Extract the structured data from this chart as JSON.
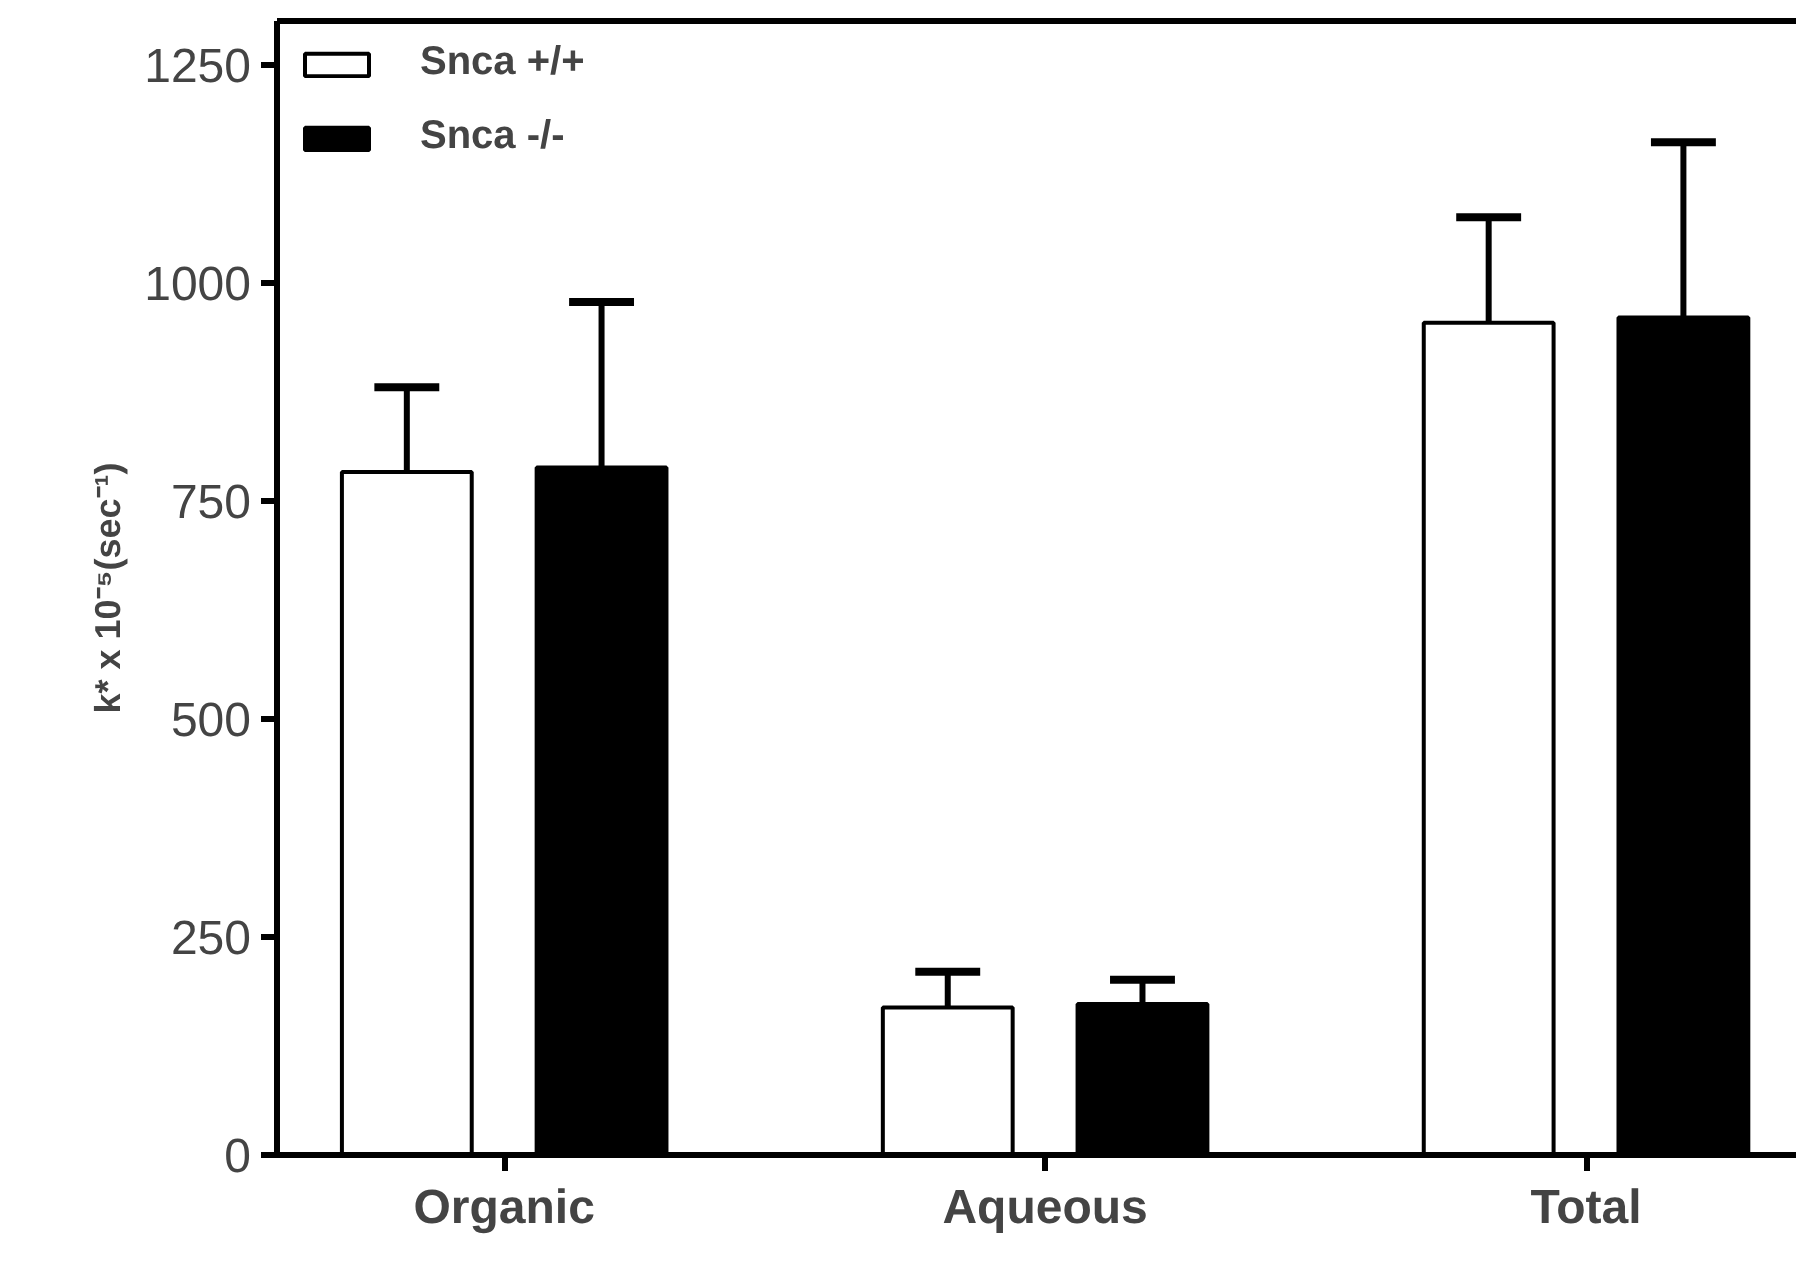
{
  "chart_data": {
    "type": "bar",
    "categories": [
      "Organic",
      "Aqueous",
      "Total"
    ],
    "ylabel": "k* x 10⁻⁵(sec⁻¹)",
    "ylim": [
      0,
      1300
    ],
    "yticks": [
      0,
      250,
      500,
      750,
      1000,
      1250
    ],
    "grid": false,
    "legend": "top left",
    "series": [
      {
        "name": "Snca +/+",
        "color": "#ffffff",
        "values": [
          783,
          169,
          954
        ],
        "errors": [
          [
            783,
            880
          ],
          [
            169,
            210
          ],
          [
            954,
            1075
          ]
        ]
      },
      {
        "name": "Snca -/-",
        "color": "#000000",
        "values": [
          788,
          173,
          960
        ],
        "errors": [
          [
            788,
            978
          ],
          [
            173,
            201
          ],
          [
            960,
            1161
          ]
        ]
      }
    ]
  }
}
